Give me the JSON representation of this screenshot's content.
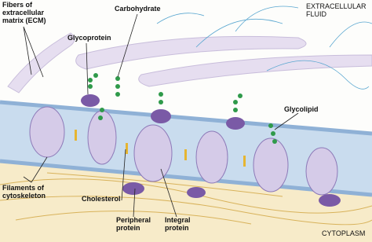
{
  "labels": [
    {
      "lines": [
        "Fibers of",
        "extracellular",
        "matrix (ECM)"
      ]
    },
    {
      "lines": [
        "Glycoprotein"
      ]
    },
    {
      "lines": [
        "Carbohydrate"
      ]
    },
    {
      "lines": [
        "EXTRACELLULAR",
        "FLUID"
      ]
    },
    {
      "lines": [
        "Glycolipid"
      ]
    },
    {
      "lines": [
        "Filaments of",
        "cytoskeleton"
      ]
    },
    {
      "lines": [
        "Cholesterol"
      ]
    },
    {
      "lines": [
        "Peripheral",
        "protein"
      ]
    },
    {
      "lines": [
        "Integral",
        "protein"
      ]
    },
    {
      "lines": [
        "CYTOPLASM"
      ]
    }
  ]
}
